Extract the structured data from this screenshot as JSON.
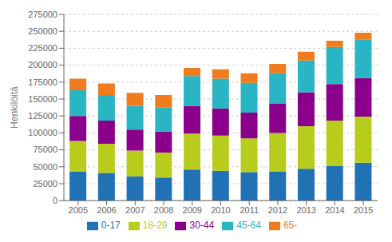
{
  "chart_data": {
    "type": "bar",
    "stacked": true,
    "ylabel": "Henkilöitä",
    "categories": [
      "2005",
      "2006",
      "2007",
      "2008",
      "2009",
      "2010",
      "2011",
      "2012",
      "2013",
      "2014",
      "2015"
    ],
    "series": [
      {
        "name": "0-17",
        "color": "#2171b5",
        "values": [
          43000,
          41000,
          36000,
          34000,
          46000,
          44000,
          42000,
          43000,
          47000,
          51000,
          56000
        ]
      },
      {
        "name": "18-29",
        "color": "#b8cc1e",
        "values": [
          45000,
          43000,
          38000,
          37000,
          53000,
          52000,
          50000,
          57000,
          63000,
          67000,
          68000
        ]
      },
      {
        "name": "30-44",
        "color": "#8b008b",
        "values": [
          37000,
          34000,
          31000,
          31000,
          41000,
          40000,
          38000,
          43000,
          50000,
          54000,
          57000
        ]
      },
      {
        "name": "45-64",
        "color": "#29b5c3",
        "values": [
          38000,
          38000,
          35000,
          36000,
          44000,
          44000,
          44000,
          45000,
          47000,
          55000,
          57000
        ]
      },
      {
        "name": "65-",
        "color": "#f07c1e",
        "values": [
          17000,
          17000,
          19000,
          18000,
          12000,
          14000,
          14000,
          14000,
          13000,
          9000,
          10000
        ]
      }
    ],
    "ylim": [
      0,
      275000
    ],
    "yticks": [
      0,
      25000,
      50000,
      75000,
      100000,
      125000,
      150000,
      175000,
      200000,
      225000,
      250000,
      275000
    ],
    "grid": true,
    "legend": "bottom"
  }
}
